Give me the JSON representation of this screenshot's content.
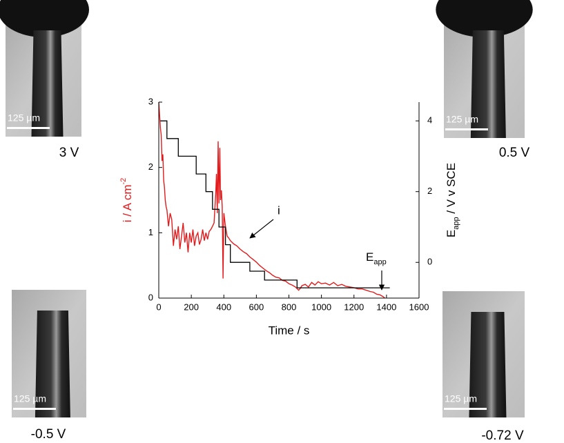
{
  "chart_data": {
    "type": "line",
    "x_label": "Time / s",
    "y_label": {
      "main": "i / A cm",
      "sup": "-2"
    },
    "y2_label": {
      "main": "E",
      "sub": "app",
      "rest": " / V v SCE"
    },
    "annotations": [
      {
        "text": "i"
      },
      {
        "text": "E",
        "sub": "app"
      }
    ],
    "xlim": [
      0,
      1600
    ],
    "xticks": [
      0,
      200,
      400,
      600,
      800,
      1000,
      1200,
      1400,
      1600
    ],
    "ylim": [
      0,
      3
    ],
    "yticks": [
      0,
      1,
      2,
      3
    ],
    "y2lim": [
      -1.01,
      4.53
    ],
    "y2ticks": [
      0,
      2,
      4
    ],
    "series": [
      {
        "name": "i",
        "color": "#e31a1c",
        "x": [
          0,
          5,
          10,
          15,
          20,
          25,
          30,
          35,
          40,
          45,
          50,
          60,
          70,
          80,
          90,
          100,
          110,
          120,
          130,
          140,
          150,
          160,
          170,
          180,
          190,
          200,
          210,
          220,
          230,
          240,
          250,
          260,
          270,
          280,
          290,
          300,
          310,
          320,
          330,
          340,
          350,
          355,
          360,
          365,
          370,
          375,
          380,
          385,
          390,
          395,
          400,
          410,
          420,
          430,
          440,
          460,
          480,
          500,
          520,
          540,
          560,
          580,
          600,
          620,
          640,
          660,
          680,
          700,
          720,
          740,
          760,
          780,
          800,
          820,
          840,
          860,
          870,
          880,
          900,
          920,
          940,
          960,
          980,
          1000,
          1025,
          1050,
          1075,
          1100,
          1125,
          1150,
          1175,
          1200,
          1225,
          1250,
          1275,
          1300,
          1320,
          1340,
          1360,
          1380,
          1390
        ],
        "values": [
          3.0,
          2.8,
          2.6,
          2.5,
          2.1,
          2.2,
          1.8,
          1.7,
          1.5,
          1.4,
          1.35,
          1.1,
          1.3,
          1.2,
          0.8,
          1.05,
          0.9,
          1.1,
          0.75,
          0.95,
          1.15,
          0.85,
          1.0,
          0.7,
          1.0,
          0.85,
          1.05,
          0.8,
          0.95,
          1.0,
          0.82,
          0.9,
          1.05,
          0.88,
          1.0,
          0.9,
          1.02,
          1.05,
          1.1,
          1.15,
          1.6,
          1.9,
          1.3,
          2.4,
          1.45,
          2.3,
          1.5,
          1.65,
          1.4,
          0.3,
          1.3,
          1.1,
          0.95,
          0.92,
          0.88,
          0.83,
          0.8,
          0.75,
          0.71,
          0.68,
          0.63,
          0.59,
          0.55,
          0.5,
          0.46,
          0.42,
          0.39,
          0.35,
          0.32,
          0.31,
          0.27,
          0.26,
          0.22,
          0.2,
          0.17,
          0.12,
          0.15,
          0.19,
          0.21,
          0.17,
          0.24,
          0.2,
          0.25,
          0.22,
          0.23,
          0.2,
          0.24,
          0.19,
          0.21,
          0.18,
          0.17,
          0.16,
          0.14,
          0.14,
          0.12,
          0.1,
          0.09,
          0.06,
          0.05,
          0.02,
          0.0
        ]
      },
      {
        "name": "E",
        "color": "#000000",
        "axis": "y2",
        "x": [
          10,
          50,
          50,
          120,
          120,
          230,
          230,
          290,
          290,
          330,
          330,
          370,
          370,
          410,
          410,
          440,
          440,
          560,
          560,
          650,
          650,
          850,
          850,
          1420
        ],
        "values": [
          4,
          4,
          3.5,
          3.5,
          3,
          3,
          2.5,
          2.5,
          2,
          2,
          1.5,
          1.5,
          1,
          1,
          0.5,
          0.5,
          0,
          0,
          -0.25,
          -0.25,
          -0.5,
          -0.5,
          -0.72,
          -0.72
        ]
      }
    ]
  },
  "images": [
    {
      "label": "3 V",
      "scale_bar": "125 µm"
    },
    {
      "label": "0.5 V",
      "scale_bar": "125 µm"
    },
    {
      "label": "-0.5 V",
      "scale_bar": "125 µm"
    },
    {
      "label": "-0.72 V",
      "scale_bar": "125 µm"
    }
  ]
}
